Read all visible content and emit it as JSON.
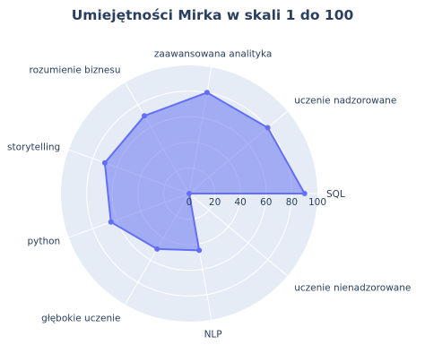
{
  "chart_data": {
    "type": "radar",
    "title": "Umiejętności Mirka w skali 1 do 100",
    "categories": [
      "SQL",
      "uczenie nadzorowane",
      "zaawansowana analityka",
      "rozumienie biznesu",
      "storytelling",
      "python",
      "głębokie uczenie",
      "NLP",
      "uczenie nienadzorowane"
    ],
    "values": [
      90,
      80,
      80,
      70,
      70,
      65,
      50,
      45,
      0
    ],
    "radial_range": [
      0,
      100
    ],
    "radial_ticks": [
      "0",
      "20",
      "40",
      "60",
      "80",
      "100"
    ],
    "fill": "toself",
    "colors": {
      "fill": "#6a78ee",
      "line": "#636efa",
      "polar_bg": "#e5ecf6",
      "grid": "#ffffff",
      "text": "#2a3f5f"
    }
  }
}
